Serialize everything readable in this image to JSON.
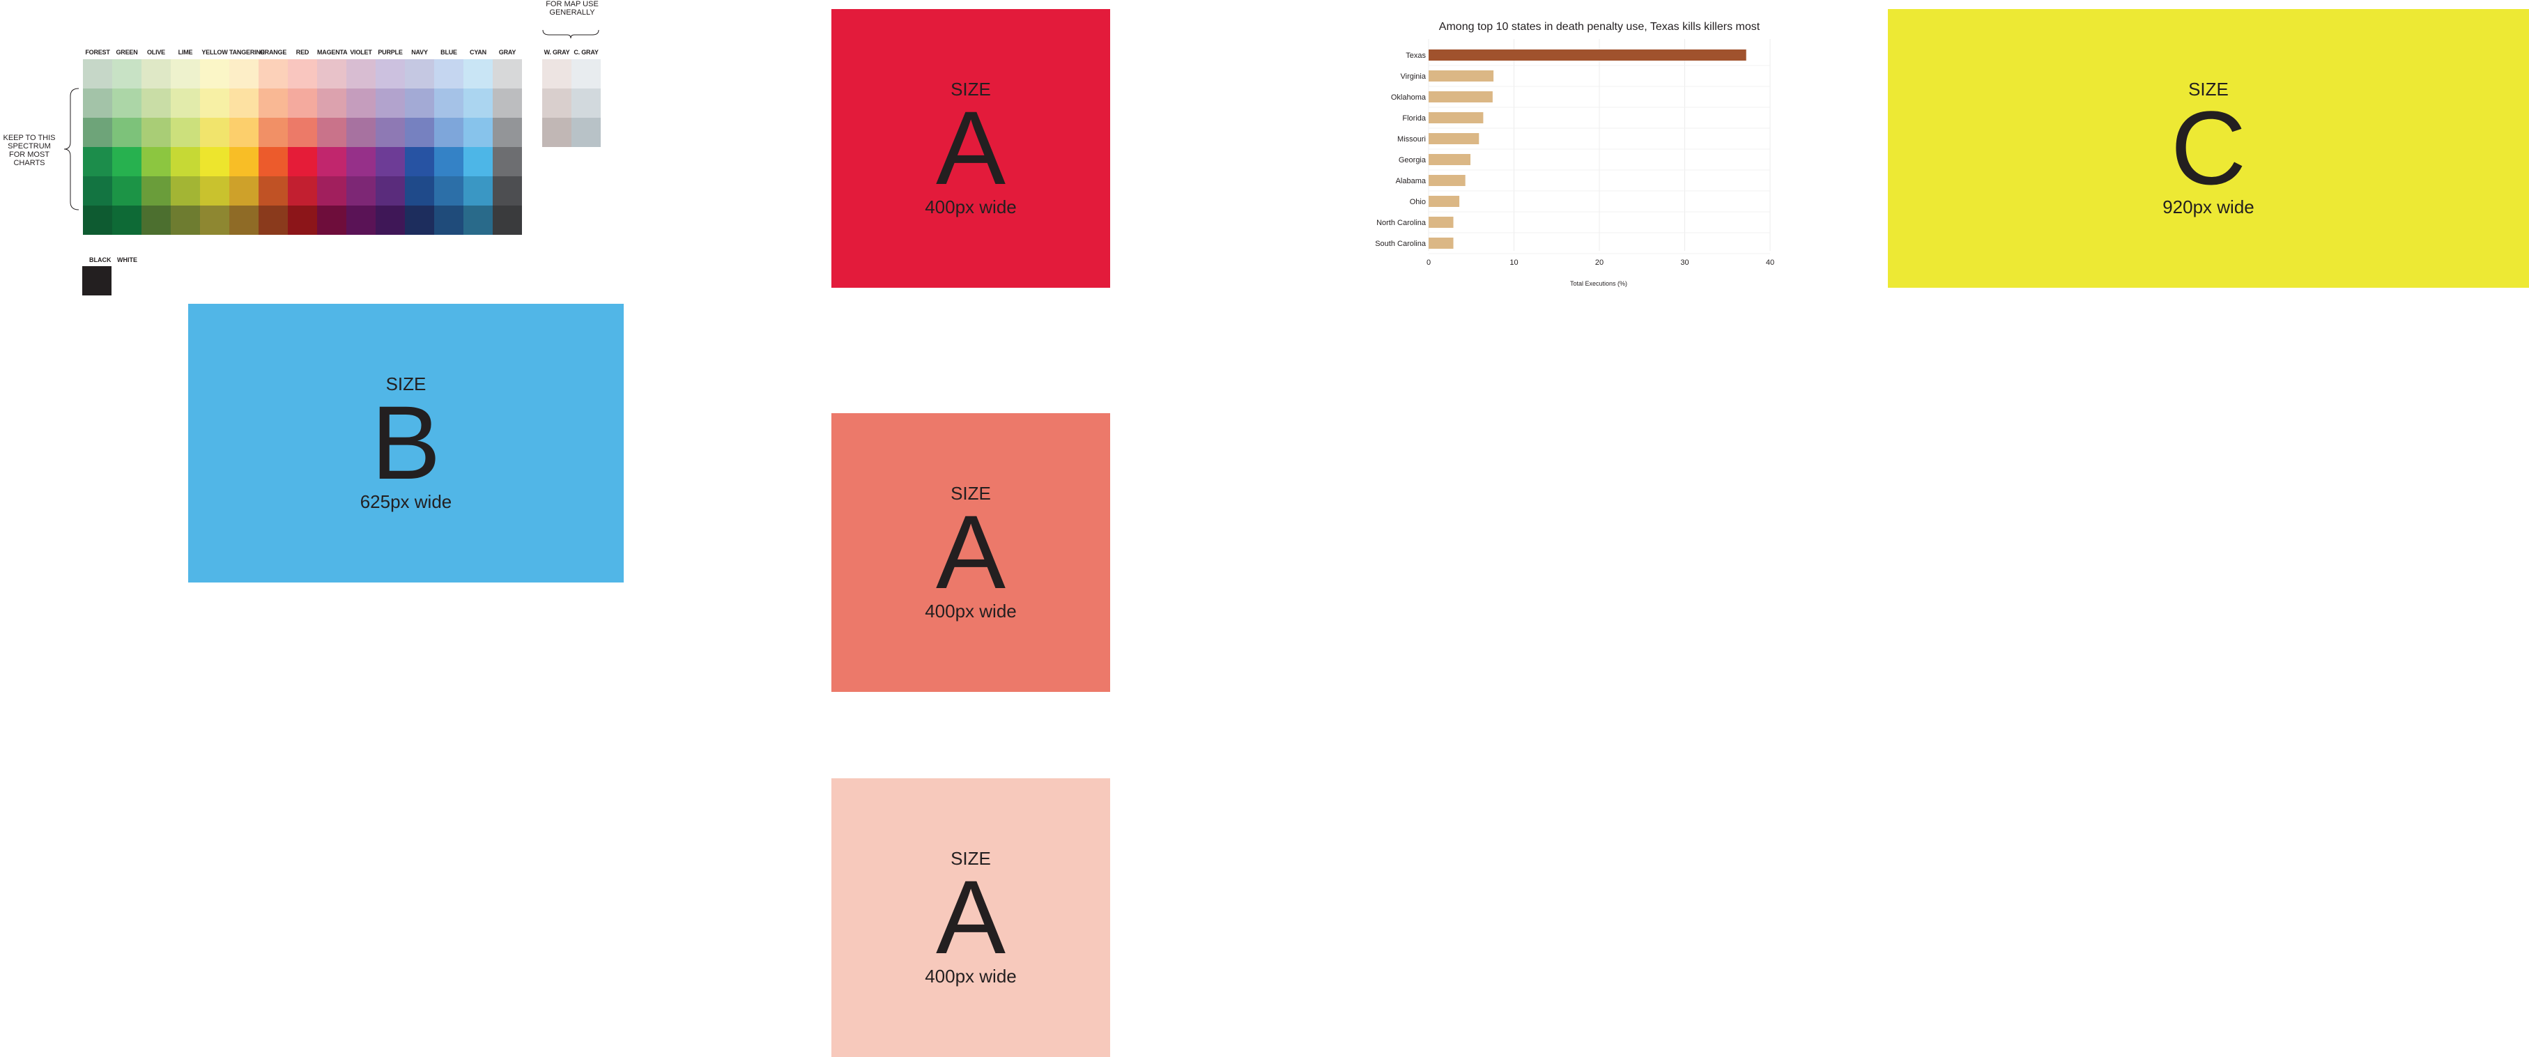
{
  "palette": {
    "columns": [
      "FOREST",
      "GREEN",
      "OLIVE",
      "LIME",
      "YELLOW",
      "TANGERINE",
      "ORANGE",
      "RED",
      "MAGENTA",
      "VIOLET",
      "PURPLE",
      "NAVY",
      "BLUE",
      "CYAN",
      "GRAY"
    ],
    "colors": [
      [
        "#c6d7c8",
        "#c8e2c5",
        "#dfe8c6",
        "#eef2cd",
        "#fbf6c7",
        "#fdeec7",
        "#fcd1b9",
        "#f9c6bf",
        "#e8c2c9",
        "#d8bdd2",
        "#ccc1df",
        "#c5c8e2",
        "#c5d6f0",
        "#c9e5f5",
        "#d7d8d9"
      ],
      [
        "#a3c3a8",
        "#acd6a7",
        "#c9dda6",
        "#e2ebab",
        "#f7f0a5",
        "#fde1a2",
        "#f9b894",
        "#f4aa9e",
        "#dca2ae",
        "#c59dbd",
        "#b2a3cd",
        "#a3aad5",
        "#a5c2e7",
        "#abd5f0",
        "#bcbdbf"
      ],
      [
        "#6ea479",
        "#7dc27a",
        "#a9cd76",
        "#cce07c",
        "#f1e46c",
        "#fccf6c",
        "#f19066",
        "#ec7a68",
        "#c9738a",
        "#a772a0",
        "#8e79b4",
        "#7681c0",
        "#7ea6da",
        "#87c3eb",
        "#939598"
      ],
      [
        "#1c8d4b",
        "#27b14f",
        "#8cc640",
        "#c6d935",
        "#ede52d",
        "#f8be26",
        "#ec5b2c",
        "#e51c38",
        "#c1266d",
        "#963089",
        "#6d3c96",
        "#2753a3",
        "#3482c6",
        "#4db6e7",
        "#6d6e71"
      ],
      [
        "#137441",
        "#1c9446",
        "#6a9d3a",
        "#a3b534",
        "#c9c22e",
        "#cea12a",
        "#c05225",
        "#c21f30",
        "#a11f5d",
        "#7d2775",
        "#5a2c7c",
        "#1f4a8a",
        "#2c6fa8",
        "#3a97c4",
        "#4d4e51"
      ],
      [
        "#0e5b31",
        "#0e6a36",
        "#4c6f2f",
        "#6e7c30",
        "#8e8731",
        "#8f6b26",
        "#8a3a1c",
        "#8c1519",
        "#6e0d3b",
        "#5a1356",
        "#3f1757",
        "#1d2d5d",
        "#1f4b7a",
        "#296a8a",
        "#3a3b3d"
      ]
    ],
    "map_note": "FOR MAP USE GENERALLY",
    "map_columns": [
      "W. GRAY",
      "C. GRAY"
    ],
    "map_colors": [
      [
        "#ede4e2",
        "#e8ecef"
      ],
      [
        "#d9cfcd",
        "#d2d9dd"
      ],
      [
        "#c1b7b5",
        "#b8c2c7"
      ]
    ],
    "spectrum_note": "KEEP TO THIS SPECTRUM FOR MOST CHARTS",
    "bw_labels": [
      "BLACK",
      "WHITE"
    ],
    "black_color": "#231f20"
  },
  "cards": {
    "size_a_red": {
      "size_word": "SIZE",
      "letter": "A",
      "width_text": "400px wide",
      "color": "#e31b3b"
    },
    "size_a_salmon": {
      "size_word": "SIZE",
      "letter": "A",
      "width_text": "400px wide",
      "color": "#ec796a"
    },
    "size_a_pink": {
      "size_word": "SIZE",
      "letter": "A",
      "width_text": "400px wide",
      "color": "#f7c9bc"
    },
    "size_b": {
      "size_word": "SIZE",
      "letter": "B",
      "width_text": "625px wide",
      "color": "#51b6e7"
    },
    "size_c": {
      "size_word": "SIZE",
      "letter": "C",
      "width_text": "920px wide",
      "color": "#ede934"
    }
  },
  "chart_data": {
    "type": "bar",
    "orientation": "horizontal",
    "title": "Among top 10 states in death penalty use, Texas kills killers most",
    "xlabel": "Total Executions (%)",
    "ylabel": "",
    "xlim": [
      0,
      40
    ],
    "xticks": [
      0,
      10,
      20,
      30,
      40
    ],
    "categories": [
      "Texas",
      "Virginia",
      "Oklahoma",
      "Florida",
      "Missouri",
      "Georgia",
      "Alabama",
      "Ohio",
      "North Carolina",
      "South Carolina"
    ],
    "values": [
      37.2,
      7.6,
      7.5,
      6.4,
      5.9,
      4.9,
      4.3,
      3.6,
      2.9,
      2.9
    ],
    "highlight_color": "#a0522d",
    "bar_color": "#dbb785",
    "grid": true
  }
}
